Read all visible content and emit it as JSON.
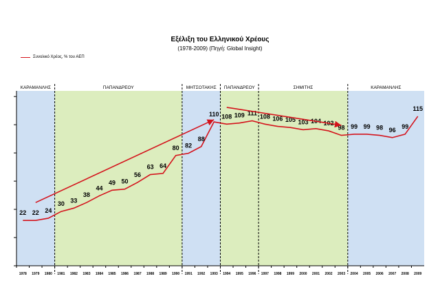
{
  "colors": {
    "series": "#d4121b",
    "blue_band": "#cfe0f3",
    "green_band": "#dcedbe",
    "axis": "#000000"
  },
  "chart_data": {
    "type": "line",
    "title": "Εξέλιξη του Ελληνικού Χρέους",
    "subtitle": "(1978-2009) (Πηγή: Global Insight)",
    "legend": {
      "label": "Συνολικό Χρέος, % του ΑΕΠ",
      "position": "top-left"
    },
    "x": [
      "1978",
      "1979",
      "1980",
      "1981",
      "1982",
      "1983",
      "1984",
      "1985",
      "1986",
      "1987",
      "1988",
      "1989",
      "1990",
      "1991",
      "1992",
      "1993",
      "1994",
      "1995",
      "1996",
      "1997",
      "1998",
      "1999",
      "2000",
      "2001",
      "2002",
      "2003",
      "2004",
      "2005",
      "2006",
      "2007",
      "2008",
      "2009"
    ],
    "series": [
      {
        "name": "Συνολικό Χρέος, % του ΑΕΠ",
        "values": [
          22,
          22,
          24,
          30,
          33,
          38,
          44,
          49,
          50,
          56,
          63,
          64,
          80,
          82,
          88,
          110,
          108,
          109,
          111,
          108,
          106,
          105,
          103,
          104,
          102,
          98,
          99,
          99,
          98,
          96,
          99,
          115
        ]
      }
    ],
    "periods": [
      {
        "label": "ΚΑΡΑΜΑΝΛΗΣ",
        "from": "1978",
        "to": "1980",
        "shade": "blue"
      },
      {
        "label": "ΠΑΠΑΝΔΡΕΟΥ",
        "from": "1981",
        "to": "1990",
        "shade": "green"
      },
      {
        "label": "ΜΗΤΣΟΤΑΚΗΣ",
        "from": "1991",
        "to": "1993",
        "shade": "blue"
      },
      {
        "label": "ΠΑΠΑΝΔΡΕΟΥ",
        "from": "1994",
        "to": "1996",
        "shade": "green"
      },
      {
        "label": "ΣΗΜΙΤΗΣ",
        "from": "1997",
        "to": "2003",
        "shade": "green"
      },
      {
        "label": "ΚΑΡΑΜΑΝΛΗΣ",
        "from": "2004",
        "to": "2009",
        "shade": "blue"
      }
    ],
    "trend_arrows": [
      {
        "from": {
          "x": "1979",
          "y": 38
        },
        "to": {
          "x": "1993",
          "y": 112
        }
      },
      {
        "from": {
          "x": "1994",
          "y": 123
        },
        "to": {
          "x": "2003",
          "y": 107
        }
      }
    ],
    "ylim": [
      0,
      140
    ],
    "grid": false
  }
}
